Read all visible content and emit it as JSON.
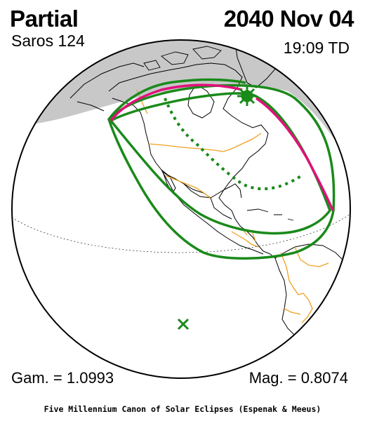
{
  "header": {
    "eclipse_type": "Partial",
    "date": "2040 Nov 04",
    "saros": "Saros 124",
    "time": "19:09 TD"
  },
  "parameters": {
    "gamma": "Gam. = 1.0993",
    "magnitude": "Mag. = 0.8074"
  },
  "footer": {
    "credit": "Five Millennium Canon of Solar Eclipses (Espenak & Meeus)"
  },
  "map": {
    "projection": "orthographic",
    "regions_shown": [
      "North America",
      "Central America",
      "northern South America",
      "Greenland",
      "eastern Siberia"
    ],
    "colors": {
      "night_shade": "#c8c8c8",
      "eclipse_limits": "#1a8a1a",
      "sunrise_sunset_curve": "#e0107a",
      "political_borders": "#f0a020",
      "coastlines": "#000000",
      "greatest_eclipse_marker": "#1a8a1a"
    },
    "markers": [
      {
        "type": "greatest-eclipse",
        "symbol": "sun-star"
      },
      {
        "type": "sub-solar-point",
        "symbol": "x"
      }
    ]
  }
}
